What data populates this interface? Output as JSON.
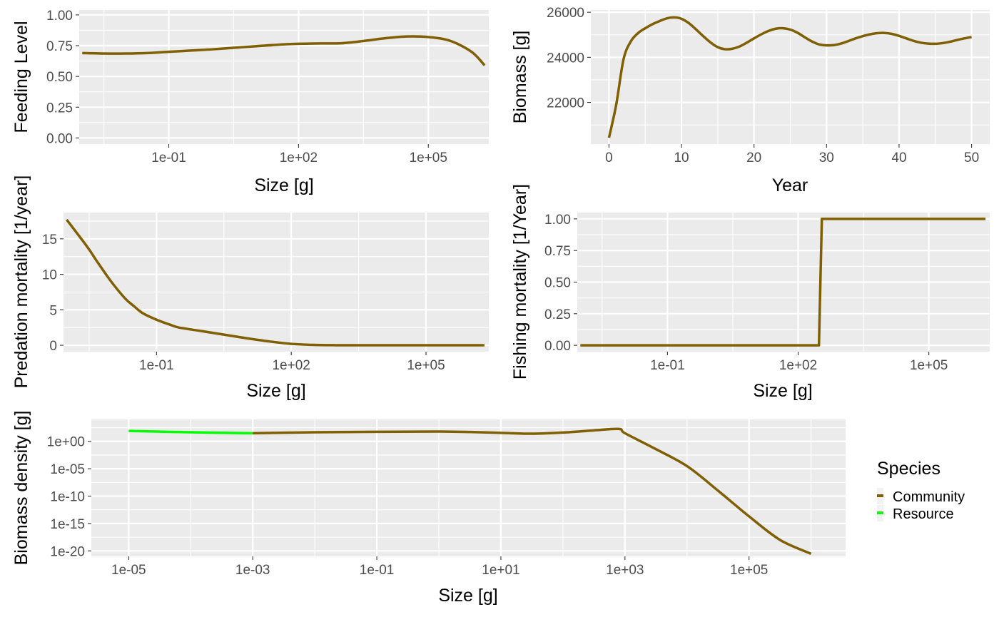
{
  "colors": {
    "Community": "#7F5F00",
    "Resource": "#00FF00"
  },
  "legend": {
    "title": "Species",
    "placement": "right of bottom panel",
    "entries": [
      {
        "name": "Community",
        "color": "#7F5F00"
      },
      {
        "name": "Resource",
        "color": "#00FF00"
      }
    ]
  },
  "chart_data": [
    {
      "id": "feeding-level",
      "type": "line",
      "xlabel": "Size [g]",
      "ylabel": "Feeding Level",
      "xscale": "log10",
      "xlim": [
        0.00085,
        2500000.0
      ],
      "ylim": [
        -0.05,
        1.04
      ],
      "xticks": [
        0.1,
        100,
        100000
      ],
      "xtick_labels": [
        "1e-01",
        "1e+02",
        "1e+05"
      ],
      "yticks": [
        0,
        0.25,
        0.5,
        0.75,
        1
      ],
      "ytick_labels": [
        "0.00",
        "0.25",
        "0.50",
        "0.75",
        "1.00"
      ],
      "grid": true,
      "series": [
        {
          "name": "Community",
          "x": [
            0.001,
            0.00316,
            0.01,
            0.0316,
            0.1,
            0.316,
            1,
            3.16,
            10,
            31.6,
            100,
            316,
            1000,
            3162,
            10000,
            31623,
            100000,
            316228,
            1000000,
            2000000
          ],
          "y": [
            0.69,
            0.686,
            0.686,
            0.69,
            0.7,
            0.71,
            0.72,
            0.733,
            0.745,
            0.757,
            0.765,
            0.768,
            0.77,
            0.788,
            0.81,
            0.825,
            0.82,
            0.79,
            0.7,
            0.59
          ]
        }
      ]
    },
    {
      "id": "biomass-time",
      "type": "line",
      "xlabel": "Year",
      "ylabel": "Biomass [g]",
      "xscale": "linear",
      "xlim": [
        -2.5,
        52.5
      ],
      "ylim": [
        20150,
        26100
      ],
      "xticks": [
        0,
        10,
        20,
        30,
        40,
        50
      ],
      "xtick_labels": [
        "0",
        "10",
        "20",
        "30",
        "40",
        "50"
      ],
      "yticks": [
        22000,
        24000,
        26000
      ],
      "ytick_labels": [
        "22000",
        "24000",
        "26000"
      ],
      "grid": true,
      "series": [
        {
          "name": "Community",
          "x": [
            0,
            1,
            2,
            3,
            4,
            5,
            6,
            7,
            8,
            9,
            10,
            11,
            12,
            13,
            14,
            15,
            16,
            17,
            18,
            19,
            20,
            21,
            22,
            23,
            24,
            25,
            26,
            27,
            28,
            29,
            30,
            31,
            32,
            33,
            34,
            35,
            36,
            37,
            38,
            39,
            40,
            41,
            42,
            43,
            44,
            45,
            46,
            47,
            48,
            49,
            50
          ],
          "y": [
            20430,
            21900,
            23900,
            24700,
            25070,
            25290,
            25470,
            25610,
            25730,
            25770,
            25710,
            25520,
            25240,
            24940,
            24660,
            24450,
            24360,
            24380,
            24480,
            24650,
            24840,
            25020,
            25170,
            25270,
            25290,
            25230,
            25090,
            24890,
            24700,
            24570,
            24530,
            24540,
            24610,
            24720,
            24840,
            24940,
            25020,
            25070,
            25080,
            25040,
            24950,
            24840,
            24730,
            24650,
            24610,
            24600,
            24630,
            24690,
            24770,
            24840,
            24900
          ]
        }
      ]
    },
    {
      "id": "predation-mortality",
      "type": "line",
      "xlabel": "Size [g]",
      "ylabel": "Predation mortality [1/year]",
      "xscale": "log10",
      "xlim": [
        0.00085,
        2500000.0
      ],
      "ylim": [
        -0.9,
        18.7
      ],
      "xticks": [
        0.1,
        100,
        100000
      ],
      "xtick_labels": [
        "1e-01",
        "1e+02",
        "1e+05"
      ],
      "yticks": [
        0,
        5,
        10,
        15
      ],
      "ytick_labels": [
        "0",
        "5",
        "10",
        "15"
      ],
      "grid": true,
      "series": [
        {
          "name": "Community",
          "x": [
            0.001,
            0.002,
            0.00316,
            0.005,
            0.01,
            0.02,
            0.0316,
            0.05,
            0.1,
            0.2,
            0.316,
            1,
            3.16,
            10,
            31.6,
            100,
            316,
            1000,
            10000,
            100000,
            1000000,
            2000000
          ],
          "y": [
            17.7,
            15.2,
            13.5,
            11.6,
            8.9,
            6.6,
            5.5,
            4.5,
            3.6,
            2.9,
            2.5,
            2.0,
            1.5,
            1.0,
            0.55,
            0.2,
            0.05,
            0.01,
            0,
            0,
            0,
            0
          ]
        }
      ]
    },
    {
      "id": "fishing-mortality",
      "type": "line",
      "xlabel": "Size [g]",
      "ylabel": "Fishing mortality [1/Year]",
      "xscale": "log10",
      "xlim": [
        0.00085,
        2500000.0
      ],
      "ylim": [
        -0.05,
        1.05
      ],
      "xticks": [
        0.1,
        100,
        100000
      ],
      "xtick_labels": [
        "1e-01",
        "1e+02",
        "1e+05"
      ],
      "yticks": [
        0,
        0.25,
        0.5,
        0.75,
        1
      ],
      "ytick_labels": [
        "0.00",
        "0.25",
        "0.50",
        "0.75",
        "1.00"
      ],
      "grid": true,
      "series": [
        {
          "name": "Community",
          "x": [
            0.001,
            300,
            350,
            2000000
          ],
          "y": [
            0,
            0,
            1,
            1
          ]
        }
      ]
    },
    {
      "id": "biomass-density",
      "type": "line",
      "xlabel": "Size [g]",
      "ylabel": "Biomass density [g]",
      "xscale": "log10",
      "yscale": "log10",
      "xlim": [
        2.5e-06,
        3600000.0
      ],
      "ylim": [
        1e-21,
        10000.0
      ],
      "xticks": [
        1e-05,
        0.001,
        0.1,
        10,
        1000,
        100000
      ],
      "xtick_labels": [
        "1e-05",
        "1e-03",
        "1e-01",
        "1e+01",
        "1e+03",
        "1e+05"
      ],
      "yticks": [
        1e-20,
        1e-15,
        1e-10,
        1e-05,
        1
      ],
      "ytick_labels": [
        "1e-20",
        "1e-15",
        "1e-10",
        "1e-05",
        "1e+00"
      ],
      "grid": true,
      "series": [
        {
          "name": "Resource",
          "x": [
            1e-05,
            0.0001,
            0.001
          ],
          "y": [
            80,
            45,
            30
          ]
        },
        {
          "name": "Community",
          "x": [
            0.001,
            0.01,
            0.1,
            1,
            3.16,
            10,
            31.6,
            100,
            316,
            800,
            1000,
            3000,
            10000,
            31623,
            100000,
            316228,
            1000000
          ],
          "y": [
            30,
            45,
            55,
            60,
            50,
            35,
            25,
            40,
            100,
            180,
            30,
            0.05,
            3e-05,
            1e-09,
            2e-14,
            1e-18,
            3e-21
          ]
        }
      ]
    }
  ]
}
